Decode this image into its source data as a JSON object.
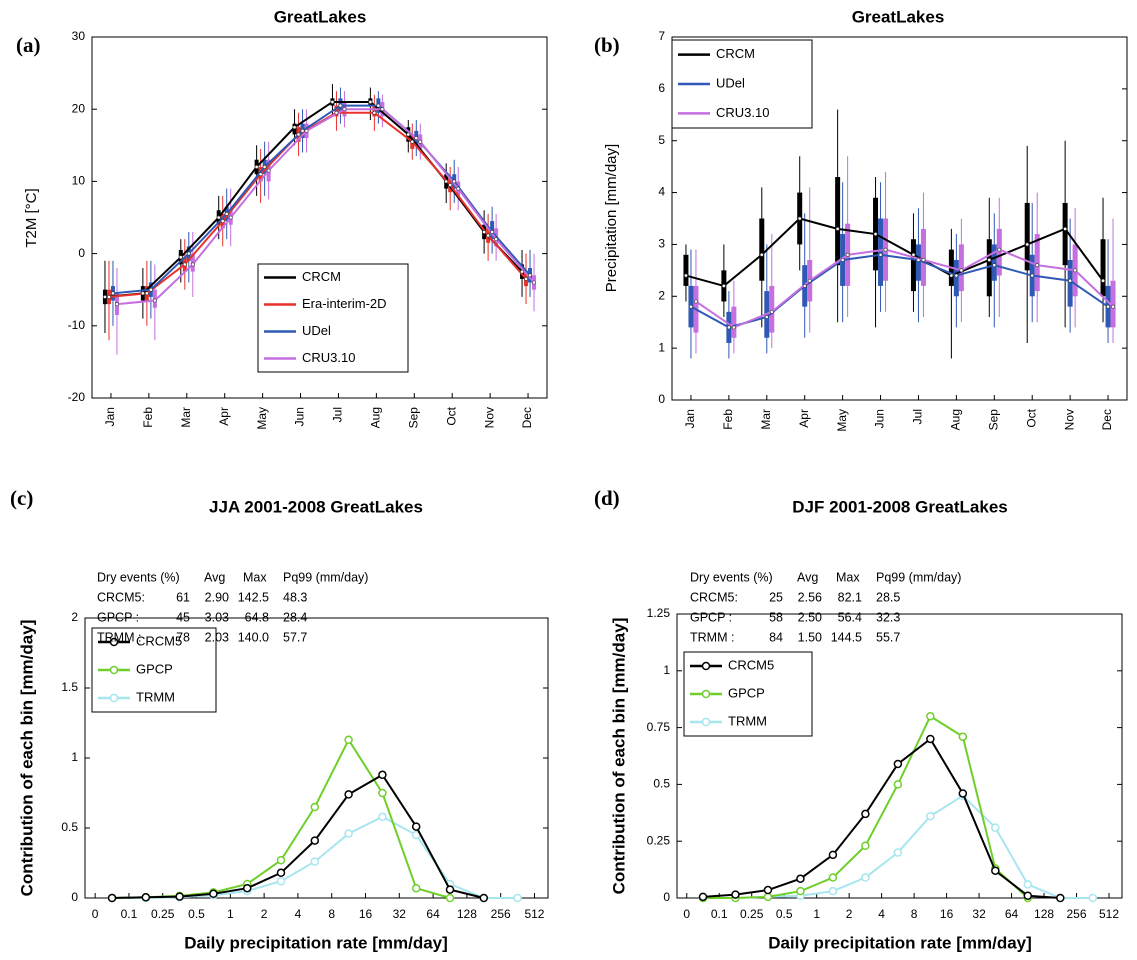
{
  "chart_data": [
    {
      "type": "box",
      "panel_label": "(a)",
      "title": "GreatLakes",
      "y_label": "T2M [°C]",
      "categories": [
        "Jan",
        "Feb",
        "Mar",
        "Apr",
        "May",
        "Jun",
        "Jul",
        "Aug",
        "Sep",
        "Oct",
        "Nov",
        "Dec"
      ],
      "ylim": [
        -20,
        30
      ],
      "yticks": [
        -20,
        -10,
        0,
        10,
        20,
        30
      ],
      "legend_loc": "lower center",
      "series": [
        {
          "name": "CRCM",
          "color": "#000000",
          "values": [
            -6,
            -5.5,
            -0.5,
            5,
            12,
            17.5,
            21,
            21,
            16.5,
            10,
            3,
            -2.5
          ],
          "q1": [
            -7,
            -6.5,
            -1.5,
            4,
            11,
            16.5,
            20.5,
            20.5,
            15.5,
            9,
            2,
            -3.5
          ],
          "q3": [
            -5,
            -4.5,
            0.5,
            6,
            13,
            18,
            21.5,
            21.5,
            17.5,
            11,
            4,
            -1.5
          ],
          "low": [
            -11,
            -9,
            -4,
            2,
            8,
            15,
            19,
            18.5,
            14,
            7,
            0,
            -6
          ],
          "high": [
            -1,
            -2,
            2,
            8,
            15,
            20,
            23.5,
            23,
            18.5,
            12.5,
            6,
            0.5
          ]
        },
        {
          "name": "Era-interim-2D",
          "color": "#e8322b",
          "values": [
            -6,
            -5.5,
            -1.5,
            4.5,
            11,
            16.5,
            19.5,
            19.5,
            15.5,
            9.5,
            2.5,
            -3.5
          ],
          "q1": [
            -7,
            -6.5,
            -2.5,
            3.5,
            10,
            15.5,
            19,
            19,
            14.5,
            8.5,
            1.5,
            -4.5
          ],
          "q3": [
            -5,
            -4.5,
            -0.5,
            5.5,
            12,
            17.5,
            20.5,
            20.5,
            16.5,
            10.5,
            3.5,
            -2.5
          ],
          "low": [
            -12,
            -10,
            -5,
            1,
            7,
            13.5,
            17,
            17,
            13,
            6,
            -1,
            -7
          ],
          "high": [
            -1,
            -1,
            2,
            8,
            14.5,
            19.5,
            22.5,
            22,
            18,
            12,
            5.5,
            0
          ]
        },
        {
          "name": "UDel",
          "color": "#2f59b5",
          "values": [
            -5.5,
            -5,
            0,
            5.5,
            12,
            17,
            20.5,
            20.5,
            16,
            10,
            3,
            -3
          ],
          "q1": [
            -6.5,
            -6,
            -1,
            4.5,
            11,
            16,
            19.5,
            19.5,
            15,
            9,
            2,
            -4
          ],
          "q3": [
            -4.5,
            -4,
            1,
            6.5,
            13,
            18,
            21.5,
            21.5,
            17,
            11,
            4.5,
            -2
          ],
          "low": [
            -10,
            -9,
            -4,
            2,
            8,
            14,
            18,
            18,
            13.5,
            7,
            0,
            -6
          ],
          "high": [
            -1,
            -1,
            3,
            9,
            15.5,
            20,
            23,
            22.5,
            18.5,
            13,
            6.5,
            0.5
          ]
        },
        {
          "name": "CRU3.10",
          "color": "#c56fe0",
          "values": [
            -7,
            -6.5,
            -1.5,
            5,
            11.5,
            17,
            20,
            20,
            15.5,
            9,
            2,
            -4
          ],
          "q1": [
            -8.5,
            -7.5,
            -2.5,
            4,
            10,
            16,
            19,
            19,
            14.5,
            8,
            1,
            -5
          ],
          "q3": [
            -5.5,
            -5,
            0,
            6,
            13,
            18,
            21,
            21,
            16.5,
            10,
            3.5,
            -3
          ],
          "low": [
            -14,
            -12,
            -6,
            1,
            7.5,
            14,
            17.5,
            17.5,
            13,
            6,
            -1,
            -8
          ],
          "high": [
            -2,
            -1.5,
            3,
            9,
            15.5,
            20,
            22.5,
            22,
            18,
            12,
            5.5,
            0
          ]
        }
      ]
    },
    {
      "type": "box",
      "panel_label": "(b)",
      "title": "GreatLakes",
      "y_label": "Precipitation [mm/day]",
      "categories": [
        "Jan",
        "Feb",
        "Mar",
        "Apr",
        "May",
        "Jun",
        "Jul",
        "Aug",
        "Sep",
        "Oct",
        "Nov",
        "Dec"
      ],
      "ylim": [
        0,
        7
      ],
      "yticks": [
        0,
        1,
        2,
        3,
        4,
        5,
        6,
        7
      ],
      "legend_loc": "upper left",
      "series": [
        {
          "name": "CRCM",
          "color": "#000000",
          "values": [
            2.4,
            2.2,
            2.8,
            3.5,
            3.3,
            3.2,
            2.8,
            2.4,
            2.7,
            3.0,
            3.3,
            2.3
          ],
          "q1": [
            2.2,
            1.9,
            2.3,
            3.0,
            2.6,
            2.5,
            2.1,
            2.2,
            2.0,
            2.5,
            2.6,
            2.0
          ],
          "q3": [
            2.8,
            2.5,
            3.5,
            4.0,
            4.3,
            3.9,
            3.1,
            2.9,
            3.1,
            3.8,
            3.8,
            3.1
          ],
          "low": [
            1.9,
            1.6,
            1.4,
            2.5,
            1.5,
            1.4,
            1.7,
            0.8,
            1.6,
            1.1,
            1.4,
            1.5
          ],
          "high": [
            3.0,
            3.0,
            4.1,
            4.7,
            5.6,
            4.3,
            3.6,
            3.3,
            3.9,
            4.9,
            5.0,
            3.9
          ]
        },
        {
          "name": "UDel",
          "color": "#2f59b5",
          "values": [
            1.8,
            1.4,
            1.6,
            2.2,
            2.7,
            2.8,
            2.7,
            2.4,
            2.6,
            2.4,
            2.3,
            1.8
          ],
          "q1": [
            1.4,
            1.1,
            1.2,
            1.8,
            2.2,
            2.2,
            2.3,
            2.0,
            2.3,
            2.0,
            1.8,
            1.4
          ],
          "q3": [
            2.2,
            1.7,
            2.1,
            2.6,
            3.2,
            3.5,
            3.0,
            2.7,
            3.0,
            2.8,
            2.7,
            2.2
          ],
          "low": [
            0.8,
            0.8,
            0.9,
            1.2,
            1.5,
            1.7,
            1.5,
            1.4,
            1.4,
            1.5,
            1.3,
            1.1
          ],
          "high": [
            2.9,
            2.1,
            3.0,
            3.6,
            4.2,
            4.2,
            3.7,
            3.2,
            3.6,
            3.8,
            3.5,
            3.1
          ]
        },
        {
          "name": "CRU3.10",
          "color": "#c56fe0",
          "values": [
            1.9,
            1.4,
            1.7,
            2.3,
            2.8,
            2.9,
            2.7,
            2.5,
            2.9,
            2.6,
            2.5,
            1.8
          ],
          "q1": [
            1.3,
            1.2,
            1.3,
            1.9,
            2.2,
            2.3,
            2.2,
            2.1,
            2.4,
            2.1,
            2.0,
            1.4
          ],
          "q3": [
            2.2,
            1.8,
            2.2,
            2.7,
            3.4,
            3.5,
            3.3,
            3.0,
            3.3,
            3.2,
            3.0,
            2.3
          ],
          "low": [
            0.9,
            0.9,
            1.0,
            1.3,
            1.6,
            1.7,
            1.6,
            1.5,
            1.6,
            1.5,
            1.4,
            1.1
          ],
          "high": [
            2.9,
            2.3,
            3.2,
            4.1,
            4.7,
            4.4,
            4.0,
            3.5,
            3.9,
            4.0,
            3.7,
            3.5
          ]
        }
      ]
    },
    {
      "type": "line",
      "panel_label": "(c)",
      "title": "JJA 2001-2008 GreatLakes",
      "y_label": "Contribution of each bin [mm/day]",
      "x_label": "Daily precipitation rate [mm/day]",
      "categories": [
        "0",
        "0.1",
        "0.25",
        "0.5",
        "1",
        "2",
        "4",
        "8",
        "16",
        "32",
        "64",
        "128",
        "256",
        "512"
      ],
      "ylim": [
        0,
        2
      ],
      "yticks": [
        0,
        0.5,
        1,
        1.5,
        2
      ],
      "legend_loc": "center left",
      "table": {
        "header": [
          "Dry events (%)",
          "Avg",
          "Max",
          "Pq99 (mm/day)"
        ],
        "rows": [
          [
            "CRCM5:",
            "61",
            "2.90",
            "142.5",
            "48.3"
          ],
          [
            "GPCP :",
            "45",
            "3.03",
            "64.8",
            "28.4"
          ],
          [
            "TRMM :",
            "78",
            "2.03",
            "140.0",
            "57.7"
          ]
        ]
      },
      "series": [
        {
          "name": "CRCM5",
          "color": "#000000",
          "values": [
            null,
            0,
            0.005,
            0.01,
            0.03,
            0.07,
            0.18,
            0.41,
            0.74,
            0.88,
            0.51,
            0.06,
            0,
            null
          ]
        },
        {
          "name": "GPCP",
          "color": "#6fcf2a",
          "values": [
            null,
            0,
            0.005,
            0.015,
            0.04,
            0.1,
            0.27,
            0.65,
            1.13,
            0.75,
            0.07,
            0,
            null,
            null
          ]
        },
        {
          "name": "TRMM",
          "color": "#a7e6ef",
          "values": [
            null,
            0,
            0,
            0.005,
            0.02,
            0.05,
            0.12,
            0.26,
            0.46,
            0.58,
            0.45,
            0.1,
            0,
            0
          ]
        }
      ]
    },
    {
      "type": "line",
      "panel_label": "(d)",
      "title": "DJF 2001-2008 GreatLakes",
      "y_label": "Contribution of each bin [mm/day]",
      "x_label": "Daily precipitation rate [mm/day]",
      "categories": [
        "0",
        "0.1",
        "0.25",
        "0.5",
        "1",
        "2",
        "4",
        "8",
        "16",
        "32",
        "64",
        "128",
        "256",
        "512"
      ],
      "ylim": [
        0,
        1.25
      ],
      "yticks": [
        0,
        0.25,
        0.5,
        0.75,
        1,
        1.25
      ],
      "legend_loc": "center left",
      "table": {
        "header": [
          "Dry events (%)",
          "Avg",
          "Max",
          "Pq99 (mm/day)"
        ],
        "rows": [
          [
            "CRCM5:",
            "25",
            "2.56",
            "82.1",
            "28.5"
          ],
          [
            "GPCP :",
            "58",
            "2.50",
            "56.4",
            "32.3"
          ],
          [
            "TRMM :",
            "84",
            "1.50",
            "144.5",
            "55.7"
          ]
        ]
      },
      "series": [
        {
          "name": "CRCM5",
          "color": "#000000",
          "values": [
            null,
            0.005,
            0.015,
            0.035,
            0.085,
            0.19,
            0.37,
            0.59,
            0.7,
            0.46,
            0.12,
            0.01,
            0,
            null
          ]
        },
        {
          "name": "GPCP",
          "color": "#6fcf2a",
          "values": [
            null,
            0,
            0,
            0.005,
            0.03,
            0.09,
            0.23,
            0.5,
            0.8,
            0.71,
            0.13,
            0,
            null,
            null
          ]
        },
        {
          "name": "TRMM",
          "color": "#a7e6ef",
          "values": [
            null,
            0,
            0,
            0.005,
            0.01,
            0.03,
            0.09,
            0.2,
            0.36,
            0.45,
            0.31,
            0.06,
            0,
            0
          ]
        }
      ]
    }
  ]
}
